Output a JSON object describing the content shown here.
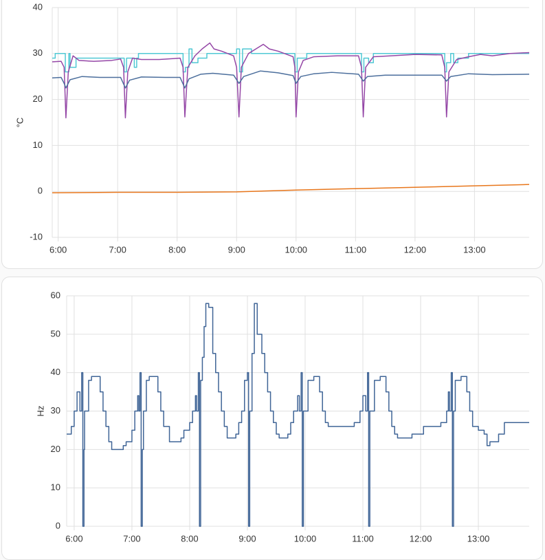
{
  "chart_data": [
    {
      "type": "line",
      "y_label": "°C",
      "grid": true,
      "xlim": [
        5.9,
        13.92
      ],
      "ylim": [
        -10,
        40
      ],
      "xticks": [
        {
          "value": 6,
          "label": "6:00"
        },
        {
          "value": 7,
          "label": "7:00"
        },
        {
          "value": 8,
          "label": "8:00"
        },
        {
          "value": 9,
          "label": "9:00"
        },
        {
          "value": 10,
          "label": "10:00"
        },
        {
          "value": 11,
          "label": "11:00"
        },
        {
          "value": 12,
          "label": "12:00"
        },
        {
          "value": 13,
          "label": "13:00"
        }
      ],
      "yticks": [
        -10,
        0,
        10,
        20,
        30,
        40
      ],
      "series": [
        {
          "color": "#4fc8d4",
          "step": true,
          "x": [
            5.9,
            5.95,
            6.12,
            6.18,
            6.2,
            6.3,
            7.11,
            7.15,
            7.28,
            7.32,
            7.35,
            8.1,
            8.14,
            8.2,
            8.25,
            8.35,
            8.5,
            9.0,
            9.05,
            9.1,
            9.25,
            9.98,
            10.02,
            10.18,
            11.1,
            11.14,
            11.22,
            11.3,
            12.5,
            12.53,
            12.6,
            12.65,
            12.72,
            12.9,
            13.92
          ],
          "values": [
            29,
            30,
            26,
            30,
            27,
            29,
            26,
            29,
            27,
            29,
            30,
            26,
            27,
            31,
            28,
            29,
            30,
            31,
            26,
            31,
            30,
            26,
            29,
            30,
            26,
            29,
            28,
            30,
            26,
            28,
            30,
            28,
            29,
            30,
            30
          ]
        },
        {
          "color": "#9446a6",
          "x": [
            5.9,
            6.05,
            6.1,
            6.13,
            6.17,
            6.25,
            6.35,
            6.6,
            6.9,
            7.05,
            7.1,
            7.13,
            7.17,
            7.25,
            7.4,
            7.7,
            8.05,
            8.1,
            8.13,
            8.18,
            8.3,
            8.42,
            8.55,
            8.62,
            8.75,
            8.95,
            9.0,
            9.04,
            9.08,
            9.2,
            9.35,
            9.45,
            9.55,
            9.7,
            9.95,
            9.98,
            10.0,
            10.04,
            10.12,
            10.3,
            10.7,
            11.05,
            11.1,
            11.13,
            11.17,
            11.3,
            11.6,
            12.0,
            12.45,
            12.5,
            12.53,
            12.57,
            12.7,
            12.9,
            13.1,
            13.3,
            13.6,
            13.92
          ],
          "values": [
            28.2,
            28.3,
            27,
            16,
            26,
            29.5,
            28.5,
            28.3,
            28.5,
            28.8,
            27,
            16,
            26,
            29,
            28.7,
            28.7,
            29,
            27,
            16.2,
            27,
            29.5,
            31,
            32.3,
            31,
            30.5,
            29.5,
            27,
            16.2,
            27,
            30,
            31.2,
            32,
            31,
            30.5,
            29.3,
            27,
            16.2,
            26,
            28.5,
            29.3,
            29.5,
            29.5,
            27,
            16.2,
            27,
            29.3,
            29.5,
            29.8,
            29.7,
            27,
            16.2,
            26,
            28.7,
            29.3,
            29.8,
            29.5,
            30,
            30.2
          ]
        },
        {
          "color": "#4b6e9c",
          "x": [
            5.9,
            6.05,
            6.1,
            6.13,
            6.2,
            6.4,
            6.7,
            7.05,
            7.13,
            7.2,
            7.4,
            7.8,
            8.05,
            8.13,
            8.2,
            8.4,
            8.6,
            8.95,
            9.04,
            9.12,
            9.4,
            9.7,
            9.95,
            10.0,
            10.08,
            10.3,
            10.6,
            11.05,
            11.13,
            11.2,
            11.5,
            12.0,
            12.45,
            12.53,
            12.6,
            12.9,
            13.3,
            13.92
          ],
          "values": [
            24.7,
            24.8,
            23.5,
            22.5,
            24.3,
            25,
            24.8,
            24.8,
            22.5,
            24.2,
            24.9,
            24.8,
            24.8,
            22.5,
            24.5,
            25.5,
            25.7,
            25.3,
            23.5,
            25,
            26.2,
            25.8,
            25.2,
            23.5,
            25,
            25.6,
            25.9,
            25.5,
            24,
            25,
            25.3,
            25.3,
            25.3,
            24,
            25,
            25.6,
            25.4,
            25.5
          ]
        },
        {
          "color": "#e8761b",
          "x": [
            5.9,
            7,
            8,
            9,
            10,
            11,
            12,
            13,
            13.92
          ],
          "values": [
            -0.3,
            -0.2,
            -0.2,
            -0.1,
            0.3,
            0.6,
            0.9,
            1.2,
            1.5
          ]
        }
      ]
    },
    {
      "type": "line",
      "y_label": "Hz",
      "grid": true,
      "xlim": [
        5.87,
        13.88
      ],
      "ylim": [
        0,
        60
      ],
      "xticks": [
        {
          "value": 6,
          "label": "6:00"
        },
        {
          "value": 7,
          "label": "7:00"
        },
        {
          "value": 8,
          "label": "8:00"
        },
        {
          "value": 9,
          "label": "9:00"
        },
        {
          "value": 10,
          "label": "10:00"
        },
        {
          "value": 11,
          "label": "11:00"
        },
        {
          "value": 12,
          "label": "12:00"
        },
        {
          "value": 13,
          "label": "13:00"
        }
      ],
      "yticks": [
        0,
        10,
        20,
        30,
        40,
        50,
        60
      ],
      "series": [
        {
          "color": "#3f6496",
          "step": true,
          "x": [
            5.87,
            5.95,
            6.0,
            6.05,
            6.1,
            6.13,
            6.15,
            6.17,
            6.18,
            6.25,
            6.3,
            6.45,
            6.5,
            6.55,
            6.6,
            6.65,
            6.85,
            6.9,
            7.0,
            7.05,
            7.1,
            7.12,
            7.14,
            7.16,
            7.18,
            7.2,
            7.25,
            7.3,
            7.45,
            7.5,
            7.55,
            7.65,
            7.85,
            7.9,
            8.0,
            8.05,
            8.1,
            8.12,
            8.15,
            8.17,
            8.19,
            8.22,
            8.25,
            8.28,
            8.33,
            8.4,
            8.45,
            8.5,
            8.55,
            8.6,
            8.65,
            8.8,
            8.85,
            8.9,
            8.95,
            9.0,
            9.02,
            9.04,
            9.08,
            9.12,
            9.17,
            9.25,
            9.3,
            9.35,
            9.4,
            9.45,
            9.5,
            9.55,
            9.7,
            9.75,
            9.8,
            9.87,
            9.9,
            9.93,
            9.95,
            9.97,
            10.05,
            10.15,
            10.25,
            10.3,
            10.35,
            10.4,
            10.85,
            10.95,
            11.0,
            11.05,
            11.08,
            11.1,
            11.12,
            11.2,
            11.3,
            11.4,
            11.45,
            11.5,
            11.55,
            11.6,
            11.85,
            12.05,
            12.35,
            12.45,
            12.48,
            12.5,
            12.53,
            12.55,
            12.57,
            12.6,
            12.7,
            12.8,
            12.85,
            12.9,
            13.0,
            13.1,
            13.15,
            13.2,
            13.35,
            13.45,
            13.88
          ],
          "values": [
            24,
            26,
            30,
            35,
            30,
            40,
            0,
            20,
            30,
            38,
            39,
            35,
            30,
            26,
            22,
            20,
            21,
            22,
            25,
            30,
            34,
            30,
            40,
            0,
            20,
            30,
            38,
            39,
            35,
            30,
            26,
            22,
            23,
            25,
            27,
            30,
            34,
            30,
            40,
            0,
            38,
            44,
            52,
            58,
            57,
            45,
            40,
            35,
            30,
            26,
            23,
            24,
            27,
            30,
            38,
            40,
            0,
            30,
            45,
            58,
            50,
            45,
            40,
            35,
            30,
            27,
            24,
            23,
            24,
            27,
            30,
            34,
            30,
            40,
            0,
            30,
            38,
            39,
            35,
            30,
            27,
            26,
            27,
            30,
            34,
            30,
            40,
            0,
            30,
            38,
            39,
            35,
            30,
            26,
            24,
            23,
            24,
            26,
            27,
            30,
            35,
            30,
            40,
            0,
            30,
            38,
            39,
            35,
            30,
            26,
            25,
            24,
            21,
            22,
            24,
            27,
            27
          ]
        }
      ]
    }
  ]
}
